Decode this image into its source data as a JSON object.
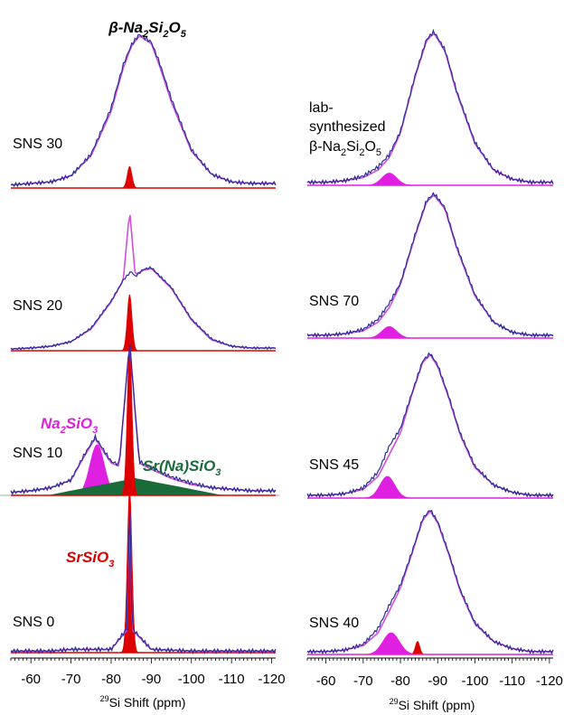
{
  "figure": {
    "top_annotation": {
      "prefix": "β-Na",
      "sub1": "2",
      "mid": "Si",
      "sub2": "2",
      "mid2": "O",
      "sub3": "5"
    },
    "x_axis_label": {
      "sup": "29",
      "text": "Si Shift (ppm)"
    },
    "tick_labels": [
      "-60",
      "-70",
      "-80",
      "-90",
      "-100",
      "-110",
      "-120"
    ]
  },
  "chart_data": [
    {
      "type": "line",
      "panel": "left",
      "xlim": [
        -55,
        -121
      ],
      "xlabel": "29Si Shift (ppm)",
      "stacked_spectra": [
        {
          "sample": "SNS 30",
          "annotation": "β-Na2Si2O5",
          "experimental": {
            "color": "#2a2a9a",
            "x": [
              -55,
              -60,
              -65,
              -70,
              -75,
              -80,
              -83,
              -85,
              -87,
              -90,
              -92,
              -95,
              -100,
              -105,
              -110,
              -115,
              -120
            ],
            "y": [
              0.02,
              0.03,
              0.04,
              0.08,
              0.22,
              0.52,
              0.8,
              0.93,
              1.0,
              0.95,
              0.82,
              0.58,
              0.25,
              0.09,
              0.04,
              0.03,
              0.03
            ]
          },
          "fit": {
            "color": "#d050d8",
            "x": [
              -55,
              -60,
              -65,
              -70,
              -75,
              -80,
              -83,
              -85,
              -87,
              -90,
              -92,
              -95,
              -100,
              -105,
              -110,
              -115,
              -120
            ],
            "y": [
              0.02,
              0.03,
              0.04,
              0.08,
              0.21,
              0.5,
              0.78,
              0.92,
              0.99,
              0.94,
              0.8,
              0.56,
              0.24,
              0.09,
              0.04,
              0.03,
              0.03
            ]
          },
          "components": [
            {
              "name": "SrSiO3",
              "color": "#dd0000",
              "center": -84.6,
              "height": 0.14,
              "width": 0.6
            }
          ]
        },
        {
          "sample": "SNS 20",
          "experimental": {
            "color": "#2a2a9a",
            "x": [
              -55,
              -60,
              -65,
              -70,
              -75,
              -80,
              -83,
              -85,
              -86,
              -88,
              -90,
              -95,
              -100,
              -105,
              -110,
              -115,
              -120
            ],
            "y": [
              0.02,
              0.03,
              0.05,
              0.1,
              0.25,
              0.55,
              0.78,
              0.88,
              0.82,
              0.9,
              0.92,
              0.7,
              0.35,
              0.13,
              0.05,
              0.03,
              0.03
            ]
          },
          "fit": {
            "color": "#d050d8",
            "x": [
              -55,
              -60,
              -65,
              -70,
              -75,
              -80,
              -83,
              -84.6,
              -86,
              -88,
              -90,
              -95,
              -100,
              -105,
              -110,
              -115,
              -120
            ],
            "y": [
              0.02,
              0.03,
              0.05,
              0.1,
              0.24,
              0.54,
              0.78,
              1.55,
              0.84,
              0.89,
              0.91,
              0.69,
              0.34,
              0.12,
              0.05,
              0.03,
              0.03
            ]
          },
          "components": [
            {
              "name": "SrSiO3",
              "color": "#dd0000",
              "center": -84.6,
              "height": 0.62,
              "width": 0.6
            }
          ]
        },
        {
          "sample": "SNS 10",
          "annotations": [
            "Na2SiO3",
            "Sr(Na)SiO3"
          ],
          "experimental": {
            "color": "#2a2a9a",
            "x": [
              -55,
              -60,
              -65,
              -70,
              -73,
              -76,
              -78,
              -80,
              -82,
              -84.6,
              -87,
              -90,
              -95,
              -100,
              -105,
              -110,
              -115,
              -120
            ],
            "y": [
              0.02,
              0.03,
              0.05,
              0.1,
              0.25,
              0.38,
              0.3,
              0.22,
              0.2,
              1.0,
              0.22,
              0.18,
              0.12,
              0.08,
              0.05,
              0.04,
              0.03,
              0.03
            ]
          },
          "fit": {
            "color": "#d050d8",
            "x": [
              -55,
              -60,
              -65,
              -70,
              -73,
              -76,
              -78,
              -80,
              -82,
              -84.6,
              -87,
              -90,
              -95,
              -100,
              -105,
              -110,
              -115,
              -120
            ],
            "y": [
              0.02,
              0.03,
              0.05,
              0.1,
              0.24,
              0.37,
              0.29,
              0.21,
              0.19,
              1.0,
              0.21,
              0.17,
              0.11,
              0.07,
              0.05,
              0.04,
              0.03,
              0.03
            ]
          },
          "components": [
            {
              "name": "Na2SiO3",
              "color": "#e020e0",
              "center": -76.5,
              "height": 0.33,
              "width": 1.8
            },
            {
              "name": "Sr(Na)SiO3",
              "color": "#1a6b3a",
              "center": -86,
              "height": 0.11,
              "width": 9
            },
            {
              "name": "SrSiO3",
              "color": "#dd0000",
              "center": -84.6,
              "height": 0.97,
              "width": 0.6
            }
          ]
        },
        {
          "sample": "SNS 0",
          "annotation": "SrSiO3",
          "experimental": {
            "color": "#2a2a9a",
            "x": [
              -55,
              -65,
              -70,
              -80,
              -84,
              -84.6,
              -85.2,
              -90,
              -100,
              -120
            ],
            "y": [
              0.01,
              0.01,
              0.02,
              0.02,
              0.15,
              1.0,
              0.15,
              0.02,
              0.01,
              0.01
            ]
          },
          "fit": {
            "color": "#d050d8",
            "x": [
              -55,
              -65,
              -70,
              -80,
              -84,
              -84.6,
              -85.2,
              -90,
              -100,
              -120
            ],
            "y": [
              0.01,
              0.01,
              0.02,
              0.02,
              0.14,
              0.99,
              0.14,
              0.02,
              0.01,
              0.01
            ]
          },
          "components": [
            {
              "name": "SrSiO3",
              "color": "#dd0000",
              "center": -84.6,
              "height": 1.0,
              "width": 0.6
            }
          ]
        }
      ]
    },
    {
      "type": "line",
      "panel": "right",
      "xlim": [
        -55,
        -121
      ],
      "xlabel": "29Si Shift (ppm)",
      "stacked_spectra": [
        {
          "sample": "lab-synthesized β-Na2Si2O5",
          "experimental": {
            "color": "#2a2a9a",
            "x": [
              -55,
              -60,
              -65,
              -70,
              -74,
              -77,
              -80,
              -84,
              -87,
              -89,
              -92,
              -95,
              -100,
              -105,
              -110,
              -115,
              -120
            ],
            "y": [
              0.02,
              0.02,
              0.03,
              0.06,
              0.12,
              0.2,
              0.35,
              0.72,
              0.95,
              1.0,
              0.88,
              0.62,
              0.28,
              0.1,
              0.04,
              0.02,
              0.02
            ]
          },
          "fit": {
            "color": "#d050d8",
            "x": [
              -55,
              -60,
              -65,
              -70,
              -74,
              -77,
              -80,
              -84,
              -87,
              -89,
              -92,
              -95,
              -100,
              -105,
              -110,
              -115,
              -120
            ],
            "y": [
              0.02,
              0.02,
              0.03,
              0.05,
              0.1,
              0.18,
              0.34,
              0.71,
              0.94,
              0.99,
              0.87,
              0.61,
              0.27,
              0.1,
              0.04,
              0.02,
              0.02
            ]
          },
          "components": [
            {
              "name": "Na2SiO3",
              "color": "#e020e0",
              "center": -77,
              "height": 0.08,
              "width": 2
            }
          ]
        },
        {
          "sample": "SNS 70",
          "experimental": {
            "color": "#2a2a9a",
            "x": [
              -55,
              -60,
              -65,
              -70,
              -74,
              -77,
              -80,
              -84,
              -87,
              -89,
              -92,
              -95,
              -100,
              -105,
              -110,
              -115,
              -120
            ],
            "y": [
              0.02,
              0.02,
              0.03,
              0.06,
              0.13,
              0.24,
              0.38,
              0.72,
              0.95,
              1.0,
              0.9,
              0.64,
              0.3,
              0.11,
              0.04,
              0.02,
              0.02
            ]
          },
          "fit": {
            "color": "#d050d8",
            "x": [
              -55,
              -60,
              -65,
              -70,
              -74,
              -77,
              -80,
              -84,
              -87,
              -89,
              -92,
              -95,
              -100,
              -105,
              -110,
              -115,
              -120
            ],
            "y": [
              0.02,
              0.02,
              0.03,
              0.05,
              0.11,
              0.21,
              0.37,
              0.71,
              0.94,
              0.99,
              0.89,
              0.63,
              0.29,
              0.11,
              0.04,
              0.02,
              0.02
            ]
          },
          "components": [
            {
              "name": "Na2SiO3",
              "color": "#e020e0",
              "center": -77,
              "height": 0.08,
              "width": 2
            }
          ]
        },
        {
          "sample": "SNS 45",
          "experimental": {
            "color": "#2a2a9a",
            "x": [
              -55,
              -60,
              -65,
              -70,
              -74,
              -77,
              -80,
              -83,
              -86,
              -88,
              -90,
              -93,
              -96,
              -100,
              -105,
              -110,
              -115,
              -120
            ],
            "y": [
              0.02,
              0.02,
              0.03,
              0.07,
              0.18,
              0.36,
              0.48,
              0.72,
              0.95,
              1.0,
              0.92,
              0.7,
              0.45,
              0.22,
              0.09,
              0.04,
              0.02,
              0.02
            ]
          },
          "fit": {
            "color": "#d050d8",
            "x": [
              -55,
              -60,
              -65,
              -70,
              -74,
              -77,
              -80,
              -83,
              -86,
              -88,
              -90,
              -93,
              -96,
              -100,
              -105,
              -110,
              -115,
              -120
            ],
            "y": [
              0.02,
              0.02,
              0.03,
              0.06,
              0.15,
              0.3,
              0.45,
              0.71,
              0.94,
              0.99,
              0.91,
              0.69,
              0.44,
              0.21,
              0.09,
              0.04,
              0.02,
              0.02
            ]
          },
          "components": [
            {
              "name": "Na2SiO3",
              "color": "#e020e0",
              "center": -76.5,
              "height": 0.15,
              "width": 2
            }
          ]
        },
        {
          "sample": "SNS 40",
          "experimental": {
            "color": "#2a2a9a",
            "x": [
              -55,
              -60,
              -65,
              -70,
              -74,
              -77,
              -80,
              -83,
              -86,
              -88,
              -90,
              -93,
              -96,
              -100,
              -105,
              -110,
              -115,
              -120
            ],
            "y": [
              0.02,
              0.02,
              0.03,
              0.07,
              0.18,
              0.34,
              0.48,
              0.7,
              0.94,
              1.0,
              0.92,
              0.7,
              0.45,
              0.22,
              0.09,
              0.04,
              0.02,
              0.02
            ]
          },
          "fit": {
            "color": "#d050d8",
            "x": [
              -55,
              -60,
              -65,
              -70,
              -74,
              -77,
              -80,
              -83,
              -86,
              -88,
              -90,
              -93,
              -96,
              -100,
              -105,
              -110,
              -115,
              -120
            ],
            "y": [
              0.02,
              0.02,
              0.03,
              0.06,
              0.15,
              0.3,
              0.46,
              0.69,
              0.93,
              0.99,
              0.91,
              0.69,
              0.44,
              0.21,
              0.09,
              0.04,
              0.02,
              0.02
            ]
          },
          "components": [
            {
              "name": "Na2SiO3",
              "color": "#e020e0",
              "center": -77.5,
              "height": 0.15,
              "width": 2.2
            },
            {
              "name": "SrSiO3",
              "color": "#dd0000",
              "center": -84.6,
              "height": 0.09,
              "width": 0.6
            }
          ]
        }
      ]
    }
  ]
}
